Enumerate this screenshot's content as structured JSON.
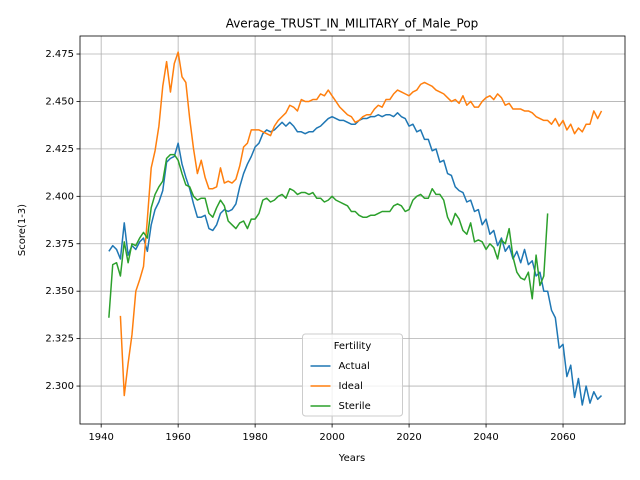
{
  "chart_data": {
    "type": "line",
    "title": "Average_TRUST_IN_MILITARY_of_Male_Pop",
    "x_label": "Years",
    "y_label": "Score(1-3)",
    "x": [
      1942,
      1943,
      1944,
      1945,
      1946,
      1947,
      1948,
      1949,
      1950,
      1951,
      1952,
      1953,
      1954,
      1955,
      1956,
      1957,
      1958,
      1959,
      1960,
      1961,
      1962,
      1963,
      1964,
      1965,
      1966,
      1967,
      1968,
      1969,
      1970,
      1971,
      1972,
      1973,
      1974,
      1975,
      1976,
      1977,
      1978,
      1979,
      1980,
      1981,
      1982,
      1983,
      1984,
      1985,
      1986,
      1987,
      1988,
      1989,
      1990,
      1991,
      1992,
      1993,
      1994,
      1995,
      1996,
      1997,
      1998,
      1999,
      2000,
      2001,
      2002,
      2003,
      2004,
      2005,
      2006,
      2007,
      2008,
      2009,
      2010,
      2011,
      2012,
      2013,
      2014,
      2015,
      2016,
      2017,
      2018,
      2019,
      2020,
      2021,
      2022,
      2023,
      2024,
      2025,
      2026,
      2027,
      2028,
      2029,
      2030,
      2031,
      2032,
      2033,
      2034,
      2035,
      2036,
      2037,
      2038,
      2039,
      2040,
      2041,
      2042,
      2043,
      2044,
      2045,
      2046,
      2047,
      2048,
      2049,
      2050,
      2051,
      2052,
      2053,
      2054,
      2055,
      2056,
      2057,
      2058,
      2059,
      2060,
      2061,
      2062,
      2063,
      2064,
      2065,
      2066,
      2067,
      2068,
      2069,
      2070
    ],
    "series": [
      {
        "name": "Actual",
        "color": "#1f77b4",
        "values": [
          2.371,
          2.374,
          2.372,
          2.367,
          2.386,
          2.369,
          2.374,
          2.372,
          2.376,
          2.378,
          2.371,
          2.385,
          2.393,
          2.397,
          2.403,
          2.418,
          2.42,
          2.421,
          2.428,
          2.417,
          2.41,
          2.404,
          2.396,
          2.389,
          2.389,
          2.39,
          2.383,
          2.382,
          2.385,
          2.391,
          2.393,
          2.392,
          2.393,
          2.396,
          2.405,
          2.412,
          2.417,
          2.421,
          2.426,
          2.428,
          2.433,
          2.435,
          2.434,
          2.435,
          2.437,
          2.439,
          2.437,
          2.439,
          2.437,
          2.434,
          2.434,
          2.433,
          2.434,
          2.434,
          2.436,
          2.437,
          2.439,
          2.441,
          2.442,
          2.441,
          2.44,
          2.44,
          2.439,
          2.438,
          2.438,
          2.44,
          2.441,
          2.441,
          2.442,
          2.442,
          2.443,
          2.442,
          2.443,
          2.443,
          2.442,
          2.444,
          2.442,
          2.441,
          2.437,
          2.438,
          2.434,
          2.435,
          2.43,
          2.43,
          2.424,
          2.425,
          2.418,
          2.419,
          2.412,
          2.411,
          2.405,
          2.403,
          2.402,
          2.397,
          2.398,
          2.392,
          2.393,
          2.385,
          2.388,
          2.38,
          2.382,
          2.374,
          2.378,
          2.371,
          2.374,
          2.367,
          2.371,
          2.365,
          2.372,
          2.364,
          2.366,
          2.358,
          2.36,
          2.35,
          2.35,
          2.34,
          2.336,
          2.32,
          2.322,
          2.305,
          2.311,
          2.294,
          2.304,
          2.29,
          2.3,
          2.291,
          2.297,
          2.293,
          2.295
        ]
      },
      {
        "name": "Ideal",
        "color": "#ff7f0e",
        "values": [
          null,
          null,
          null,
          2.337,
          2.295,
          2.312,
          2.327,
          2.35,
          2.356,
          2.363,
          2.388,
          2.415,
          2.424,
          2.437,
          2.458,
          2.471,
          2.455,
          2.47,
          2.476,
          2.463,
          2.46,
          2.441,
          2.425,
          2.412,
          2.419,
          2.41,
          2.404,
          2.404,
          2.405,
          2.415,
          2.407,
          2.408,
          2.407,
          2.409,
          2.416,
          2.426,
          2.428,
          2.435,
          2.435,
          2.435,
          2.434,
          2.433,
          2.432,
          2.437,
          2.44,
          2.442,
          2.444,
          2.448,
          2.447,
          2.445,
          2.451,
          2.45,
          2.45,
          2.451,
          2.451,
          2.454,
          2.453,
          2.456,
          2.453,
          2.45,
          2.447,
          2.445,
          2.443,
          2.442,
          2.439,
          2.44,
          2.442,
          2.443,
          2.443,
          2.446,
          2.448,
          2.447,
          2.451,
          2.451,
          2.454,
          2.456,
          2.455,
          2.454,
          2.453,
          2.455,
          2.456,
          2.459,
          2.46,
          2.459,
          2.458,
          2.456,
          2.455,
          2.454,
          2.452,
          2.45,
          2.451,
          2.449,
          2.453,
          2.448,
          2.45,
          2.447,
          2.447,
          2.45,
          2.452,
          2.453,
          2.451,
          2.454,
          2.452,
          2.448,
          2.449,
          2.446,
          2.446,
          2.446,
          2.445,
          2.445,
          2.444,
          2.442,
          2.441,
          2.44,
          2.44,
          2.438,
          2.441,
          2.437,
          2.44,
          2.435,
          2.438,
          2.433,
          2.436,
          2.434,
          2.438,
          2.438,
          2.445,
          2.441,
          2.445
        ]
      },
      {
        "name": "Sterile",
        "color": "#2ca02c",
        "values": [
          2.336,
          2.364,
          2.365,
          2.358,
          2.376,
          2.365,
          2.375,
          2.374,
          2.378,
          2.381,
          2.378,
          2.394,
          2.401,
          2.405,
          2.408,
          2.42,
          2.422,
          2.422,
          2.419,
          2.412,
          2.406,
          2.405,
          2.4,
          2.398,
          2.399,
          2.399,
          2.391,
          2.389,
          2.394,
          2.398,
          2.395,
          2.387,
          2.385,
          2.383,
          2.386,
          2.387,
          2.383,
          2.388,
          2.388,
          2.391,
          2.398,
          2.399,
          2.397,
          2.398,
          2.4,
          2.401,
          2.399,
          2.404,
          2.403,
          2.401,
          2.402,
          2.402,
          2.401,
          2.402,
          2.399,
          2.399,
          2.397,
          2.398,
          2.4,
          2.398,
          2.397,
          2.396,
          2.395,
          2.392,
          2.392,
          2.39,
          2.389,
          2.389,
          2.39,
          2.39,
          2.391,
          2.392,
          2.392,
          2.392,
          2.395,
          2.396,
          2.395,
          2.392,
          2.393,
          2.398,
          2.4,
          2.401,
          2.399,
          2.399,
          2.404,
          2.401,
          2.401,
          2.398,
          2.389,
          2.385,
          2.391,
          2.388,
          2.382,
          2.38,
          2.386,
          2.376,
          2.377,
          2.376,
          2.372,
          2.375,
          2.373,
          2.367,
          2.377,
          2.375,
          2.383,
          2.368,
          2.36,
          2.357,
          2.356,
          2.36,
          2.346,
          2.369,
          2.353,
          2.358,
          2.391,
          null,
          null,
          null,
          null,
          null,
          null,
          null,
          null,
          null,
          null,
          null,
          null,
          null,
          null
        ]
      }
    ],
    "xlim": [
      1934.5,
      2076.1
    ],
    "ylim": [
      2.28,
      2.4845
    ],
    "xticks": [
      1940,
      1960,
      1980,
      2000,
      2020,
      2040,
      2060
    ],
    "yticks": [
      {
        "value": 2.3,
        "label": "2.300"
      },
      {
        "value": 2.325,
        "label": "2.325"
      },
      {
        "value": 2.35,
        "label": "2.350"
      },
      {
        "value": 2.375,
        "label": "2.375"
      },
      {
        "value": 2.4,
        "label": "2.400"
      },
      {
        "value": 2.425,
        "label": "2.425"
      },
      {
        "value": 2.45,
        "label": "2.450"
      },
      {
        "value": 2.475,
        "label": "2.475"
      }
    ],
    "grid": true,
    "legend_title": "Fertility",
    "legend_position": "lower center"
  }
}
